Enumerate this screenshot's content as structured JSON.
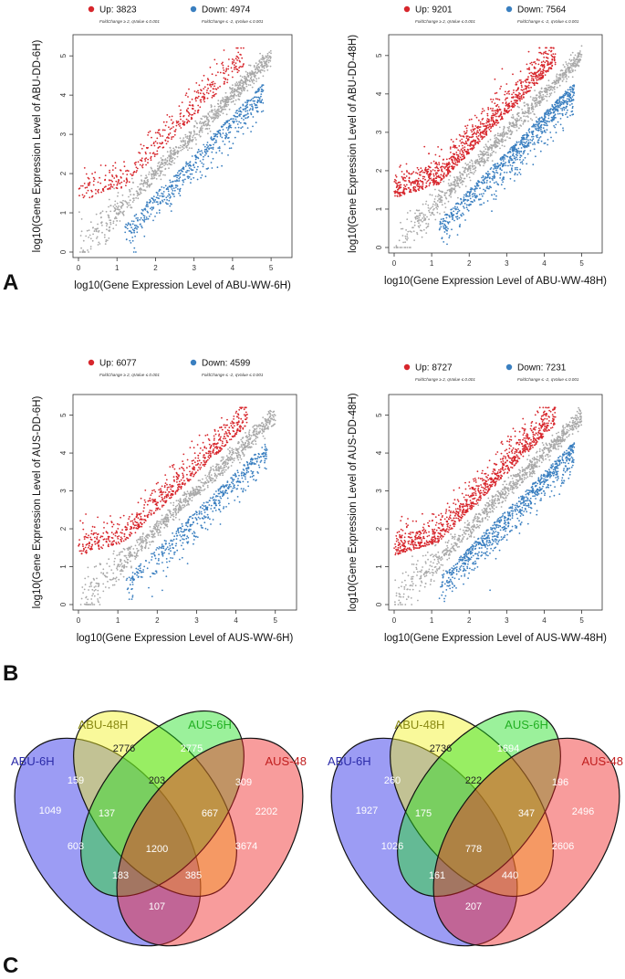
{
  "panels": {
    "A": "A",
    "B": "B",
    "C": "C"
  },
  "colors": {
    "up": "#d7262c",
    "down": "#3a7fc0",
    "neutral": "#a9a9a9",
    "axis": "#333333"
  },
  "chart_data": [
    {
      "type": "scatter",
      "panel": "A",
      "xlabel": "log10(Gene Expression Level of ABU-WW-6H)",
      "ylabel": "log10(Gene Expression Level of ABU-DD-6H)",
      "xlim": [
        0,
        5.4
      ],
      "ylim": [
        0,
        5.4
      ],
      "xticks": [
        0,
        1,
        2,
        3,
        4,
        5
      ],
      "yticks": [
        0,
        1,
        2,
        3,
        4,
        5
      ],
      "legend": {
        "up_label": "Up: 3823",
        "down_label": "Down: 4974",
        "up_note": "FoldChange ≥ 2, qValue ≤ 0.001",
        "down_note": "FoldChange ≤ -2, qValue ≤ 0.001"
      },
      "series": [
        {
          "name": "Up",
          "count": 3823
        },
        {
          "name": "Down",
          "count": 4974
        },
        {
          "name": "Not differentially expressed",
          "diagonal_from": [
            0,
            0
          ],
          "diagonal_to": [
            5.3,
            5.3
          ]
        }
      ]
    },
    {
      "type": "scatter",
      "panel": "A",
      "xlabel": "log10(Gene Expression Level of ABU-WW-48H)",
      "ylabel": "log10(Gene Expression Level of ABU-DD-48H)",
      "xlim": [
        0,
        5.4
      ],
      "ylim": [
        0,
        5.4
      ],
      "xticks": [
        0,
        1,
        2,
        3,
        4,
        5
      ],
      "yticks": [
        0,
        1,
        2,
        3,
        4,
        5
      ],
      "legend": {
        "up_label": "Up: 9201",
        "down_label": "Down: 7564",
        "up_note": "FoldChange ≥ 2, qValue ≤ 0.001",
        "down_note": "FoldChange ≤ -2, qValue ≤ 0.001"
      },
      "series": [
        {
          "name": "Up",
          "count": 9201
        },
        {
          "name": "Down",
          "count": 7564
        },
        {
          "name": "Not differentially expressed",
          "diagonal_from": [
            0,
            0
          ],
          "diagonal_to": [
            5.3,
            5.3
          ]
        }
      ]
    },
    {
      "type": "scatter",
      "panel": "B",
      "xlabel": "log10(Gene Expression Level of AUS-WW-6H)",
      "ylabel": "log10(Gene Expression Level of AUS-DD-6H)",
      "xlim": [
        0,
        5.4
      ],
      "ylim": [
        0,
        5.4
      ],
      "xticks": [
        0,
        1,
        2,
        3,
        4,
        5
      ],
      "yticks": [
        0,
        1,
        2,
        3,
        4,
        5
      ],
      "legend": {
        "up_label": "Up: 6077",
        "down_label": "Down: 4599",
        "up_note": "FoldChange ≥ 2, qValue ≤ 0.001",
        "down_note": "FoldChange ≤ -2, qValue ≤ 0.001"
      },
      "series": [
        {
          "name": "Up",
          "count": 6077
        },
        {
          "name": "Down",
          "count": 4599
        },
        {
          "name": "Not differentially expressed",
          "diagonal_from": [
            0,
            0
          ],
          "diagonal_to": [
            5.3,
            5.3
          ]
        }
      ]
    },
    {
      "type": "scatter",
      "panel": "B",
      "xlabel": "log10(Gene Expression Level of AUS-WW-48H)",
      "ylabel": "log10(Gene Expression Level of AUS-DD-48H)",
      "xlim": [
        0,
        5.4
      ],
      "ylim": [
        0,
        5.4
      ],
      "xticks": [
        0,
        1,
        2,
        3,
        4,
        5
      ],
      "yticks": [
        0,
        1,
        2,
        3,
        4,
        5
      ],
      "legend": {
        "up_label": "Up: 8727",
        "down_label": "Down: 7231",
        "up_note": "FoldChange ≥ 2, qValue ≤ 0.001",
        "down_note": "FoldChange ≤ -2, qValue ≤ 0.001"
      },
      "series": [
        {
          "name": "Up",
          "count": 8727
        },
        {
          "name": "Down",
          "count": 7231
        },
        {
          "name": "Not differentially expressed",
          "diagonal_from": [
            0,
            0
          ],
          "diagonal_to": [
            5.3,
            5.3
          ]
        }
      ]
    }
  ],
  "venn": [
    {
      "panel": "C",
      "sets": [
        {
          "label": "ABU-6H",
          "color": "#2323e6"
        },
        {
          "label": "ABU-48H",
          "color": "#f2f21e"
        },
        {
          "label": "AUS-6H",
          "color": "#22e022"
        },
        {
          "label": "AUS-48",
          "color": "#f02424"
        }
      ],
      "regions": {
        "a_only": "1049",
        "b_only": "2776",
        "c_only": "2775",
        "d_only": "2202",
        "ab": "159",
        "bc": "203",
        "cd": "309",
        "abc": "137",
        "bcd": "667",
        "ac": "603",
        "abcd": "1200",
        "bd": "3674",
        "acd": "183",
        "abd": "385",
        "ad": "107"
      }
    },
    {
      "panel": "C",
      "sets": [
        {
          "label": "ABU-6H",
          "color": "#2323e6"
        },
        {
          "label": "ABU-48H",
          "color": "#f2f21e"
        },
        {
          "label": "AUS-6H",
          "color": "#22e022"
        },
        {
          "label": "AUS-48",
          "color": "#f02424"
        }
      ],
      "regions": {
        "a_only": "1927",
        "b_only": "2736",
        "c_only": "1694",
        "d_only": "2496",
        "ab": "260",
        "bc": "222",
        "cd": "196",
        "abc": "175",
        "bcd": "347",
        "ac": "1026",
        "abcd": "778",
        "bd": "2606",
        "acd": "161",
        "abd": "440",
        "ad": "207"
      }
    }
  ]
}
